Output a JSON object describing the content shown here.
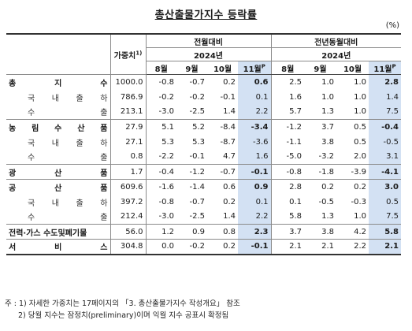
{
  "title": "총산출물가지수 등락률",
  "unit": "(%)",
  "header": {
    "weight_label": "가중치",
    "weight_sup": "1)",
    "group_mom": "전월대비",
    "group_yoy": "전년동월대비",
    "year": "2024년",
    "months": [
      "8월",
      "9월",
      "10월",
      "11월"
    ],
    "nov_sup": "P"
  },
  "rows": [
    {
      "label": "총지수",
      "level": "major",
      "weight": "1000.0",
      "mom": [
        "-0.8",
        "-0.7",
        "0.2",
        "0.6"
      ],
      "yoy": [
        "2.5",
        "1.0",
        "1.0",
        "2.8"
      ]
    },
    {
      "label": "국내출하",
      "level": "sub",
      "weight": "786.9",
      "mom": [
        "-0.2",
        "-0.2",
        "-0.1",
        "0.1"
      ],
      "yoy": [
        "1.6",
        "1.0",
        "1.0",
        "1.4"
      ]
    },
    {
      "label": "수출",
      "level": "sub",
      "weight": "213.1",
      "mom": [
        "-3.0",
        "-2.5",
        "1.4",
        "2.2"
      ],
      "yoy": [
        "5.7",
        "1.3",
        "1.0",
        "7.5"
      ]
    },
    {
      "label": "농림수산품",
      "level": "major",
      "weight": "27.9",
      "mom": [
        "5.1",
        "5.2",
        "-8.4",
        "-3.4"
      ],
      "yoy": [
        "-1.2",
        "3.7",
        "0.5",
        "-0.4"
      ]
    },
    {
      "label": "국내출하",
      "level": "sub",
      "weight": "27.1",
      "mom": [
        "5.3",
        "5.3",
        "-8.7",
        "-3.6"
      ],
      "yoy": [
        "-1.1",
        "3.8",
        "0.5",
        "-0.5"
      ]
    },
    {
      "label": "수출",
      "level": "sub",
      "weight": "0.8",
      "mom": [
        "-2.2",
        "-0.1",
        "4.7",
        "1.6"
      ],
      "yoy": [
        "-5.0",
        "-3.2",
        "2.0",
        "3.1"
      ]
    },
    {
      "label": "광산품",
      "level": "major",
      "weight": "1.7",
      "mom": [
        "-0.4",
        "-1.2",
        "-0.7",
        "-0.1"
      ],
      "yoy": [
        "-0.8",
        "-1.8",
        "-3.9",
        "-4.1"
      ]
    },
    {
      "label": "공산품",
      "level": "major",
      "weight": "609.6",
      "mom": [
        "-1.6",
        "-1.4",
        "0.6",
        "0.9"
      ],
      "yoy": [
        "2.8",
        "0.2",
        "0.2",
        "3.0"
      ]
    },
    {
      "label": "국내출하",
      "level": "sub",
      "weight": "397.2",
      "mom": [
        "-0.8",
        "-0.7",
        "0.2",
        "0.1"
      ],
      "yoy": [
        "0.1",
        "-0.5",
        "-0.3",
        "0.5"
      ]
    },
    {
      "label": "수출",
      "level": "sub",
      "weight": "212.4",
      "mom": [
        "-3.0",
        "-2.5",
        "1.4",
        "2.2"
      ],
      "yoy": [
        "5.8",
        "1.3",
        "1.0",
        "7.5"
      ]
    },
    {
      "label": "전력·가스 수도및폐기물",
      "level": "plain",
      "weight": "56.0",
      "mom": [
        "1.2",
        "0.9",
        "0.8",
        "2.3"
      ],
      "yoy": [
        "3.7",
        "3.8",
        "4.2",
        "5.8"
      ]
    },
    {
      "label": "서비스",
      "level": "major",
      "weight": "304.8",
      "mom": [
        "0.0",
        "-0.2",
        "0.2",
        "-0.1"
      ],
      "yoy": [
        "2.1",
        "2.1",
        "2.2",
        "2.1"
      ]
    }
  ],
  "notes": [
    "주 : 1) 자세한 가중치는 17페이지의 「3. 총산출물가지수 작성개요」 참조",
    "2) 당월 지수는 잠정치(preliminary)이며 익월 지수 공표시 확정됨"
  ]
}
